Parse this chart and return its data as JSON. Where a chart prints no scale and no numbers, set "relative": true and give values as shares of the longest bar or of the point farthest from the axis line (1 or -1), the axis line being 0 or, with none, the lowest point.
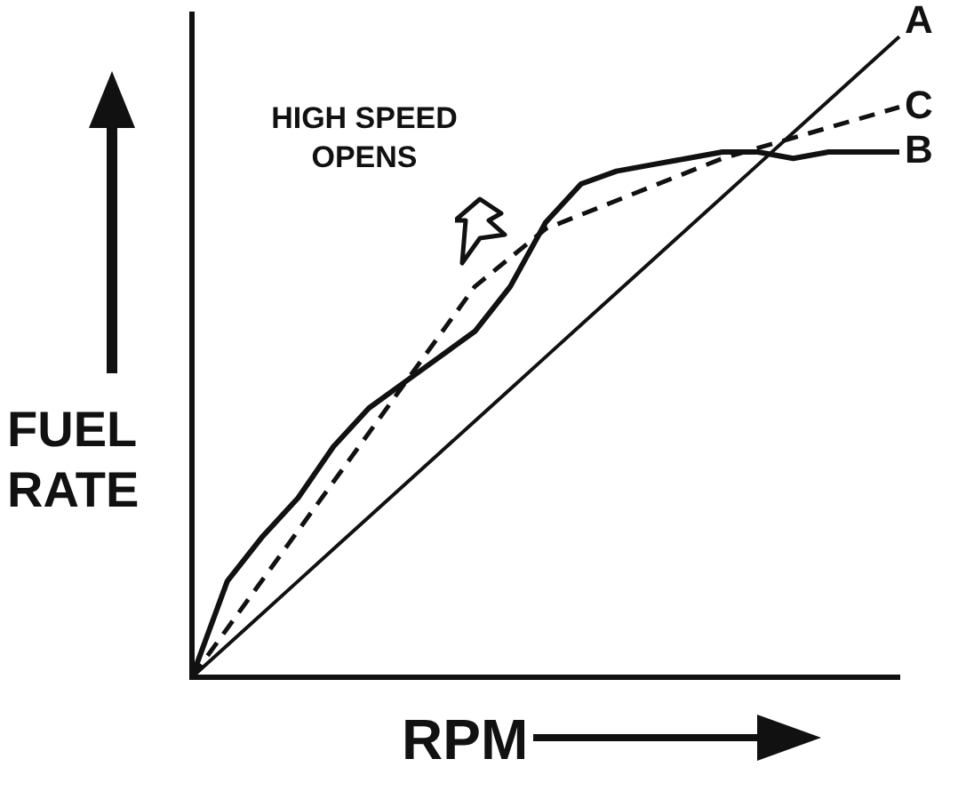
{
  "chart_data": {
    "type": "line",
    "relative": true,
    "xlabel": "RPM",
    "ylabel": "FUEL RATE",
    "annotations": [
      "HIGH SPEED OPENS"
    ],
    "legend": false,
    "grid": false,
    "marker": "none",
    "categories": [
      null,
      null,
      null,
      null,
      null,
      null,
      null,
      null,
      null,
      null,
      null,
      null,
      null,
      null,
      null,
      null,
      null,
      null,
      null,
      null,
      null
    ],
    "series": [
      {
        "name": "A",
        "color": "#111111",
        "line_style": "solid",
        "values": [
          0,
          0.05,
          0.1,
          0.15,
          0.2,
          0.25,
          0.3,
          0.35,
          0.4,
          0.45,
          0.5,
          0.55,
          0.6,
          0.65,
          0.7,
          0.75,
          0.8,
          0.85,
          0.9,
          0.95,
          1
        ]
      },
      {
        "name": "B",
        "color": "#111111",
        "line_style": "solid",
        "values": [
          0,
          0.15,
          0.22,
          0.28,
          0.36,
          0.42,
          0.46,
          0.5,
          0.54,
          0.61,
          0.71,
          0.77,
          0.79,
          0.8,
          0.81,
          0.82,
          0.82,
          0.81,
          0.82,
          0.82,
          0.82
        ]
      },
      {
        "name": "C",
        "color": "#111111",
        "line_style": "dashed",
        "values": [
          0,
          null,
          null,
          null,
          null,
          null,
          null,
          null,
          0.61,
          null,
          0.7,
          null,
          null,
          null,
          null,
          0.81,
          null,
          null,
          null,
          null,
          0.89
        ]
      }
    ]
  }
}
